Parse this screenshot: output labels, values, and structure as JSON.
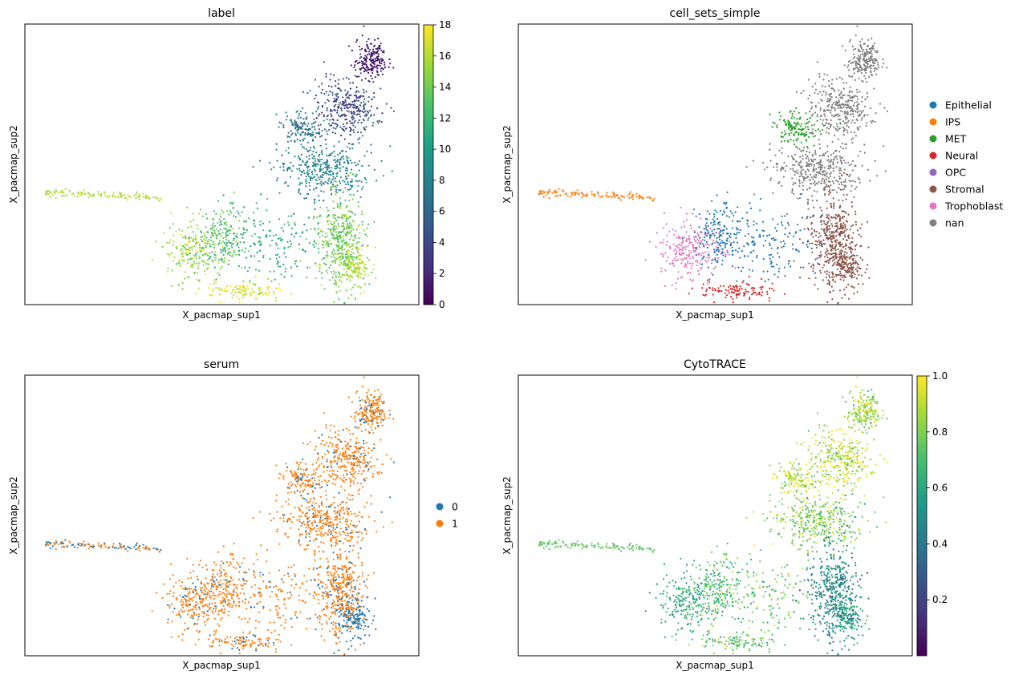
{
  "chart_data": [
    {
      "type": "scatter",
      "title": "label",
      "xlabel": "X_pacmap_sup1",
      "ylabel": "X_pacmap_sup2",
      "color_encoding": "continuous",
      "colormap": "viridis",
      "colorbar": {
        "range": [
          0,
          18
        ],
        "ticks": [
          0,
          2,
          4,
          6,
          8,
          10,
          12,
          14,
          16,
          18
        ]
      }
    },
    {
      "type": "scatter",
      "title": "cell_sets_simple",
      "xlabel": "X_pacmap_sup1",
      "ylabel": "X_pacmap_sup2",
      "color_encoding": "categorical",
      "legend": {
        "placement": "right",
        "items": [
          {
            "label": "Epithelial",
            "color": "#1f77b4"
          },
          {
            "label": "IPS",
            "color": "#ff7f0e"
          },
          {
            "label": "MET",
            "color": "#2ca02c"
          },
          {
            "label": "Neural",
            "color": "#d62728"
          },
          {
            "label": "OPC",
            "color": "#9467bd"
          },
          {
            "label": "Stromal",
            "color": "#8c564b"
          },
          {
            "label": "Trophoblast",
            "color": "#e377c2"
          },
          {
            "label": "nan",
            "color": "#7f7f7f"
          }
        ]
      }
    },
    {
      "type": "scatter",
      "title": "serum",
      "xlabel": "X_pacmap_sup1",
      "ylabel": "X_pacmap_sup2",
      "color_encoding": "categorical",
      "legend": {
        "placement": "right",
        "items": [
          {
            "label": "0",
            "color": "#1f77b4"
          },
          {
            "label": "1",
            "color": "#ff7f0e"
          }
        ]
      }
    },
    {
      "type": "scatter",
      "title": "CytoTRACE",
      "xlabel": "X_pacmap_sup1",
      "ylabel": "X_pacmap_sup2",
      "color_encoding": "continuous",
      "colormap": "viridis",
      "colorbar": {
        "range": [
          0,
          1.0
        ],
        "ticks": [
          0.2,
          0.4,
          0.6,
          0.8,
          1.0
        ],
        "tick_labels": [
          "0.2",
          "0.4",
          "0.6",
          "0.8",
          "1.0"
        ]
      }
    }
  ]
}
